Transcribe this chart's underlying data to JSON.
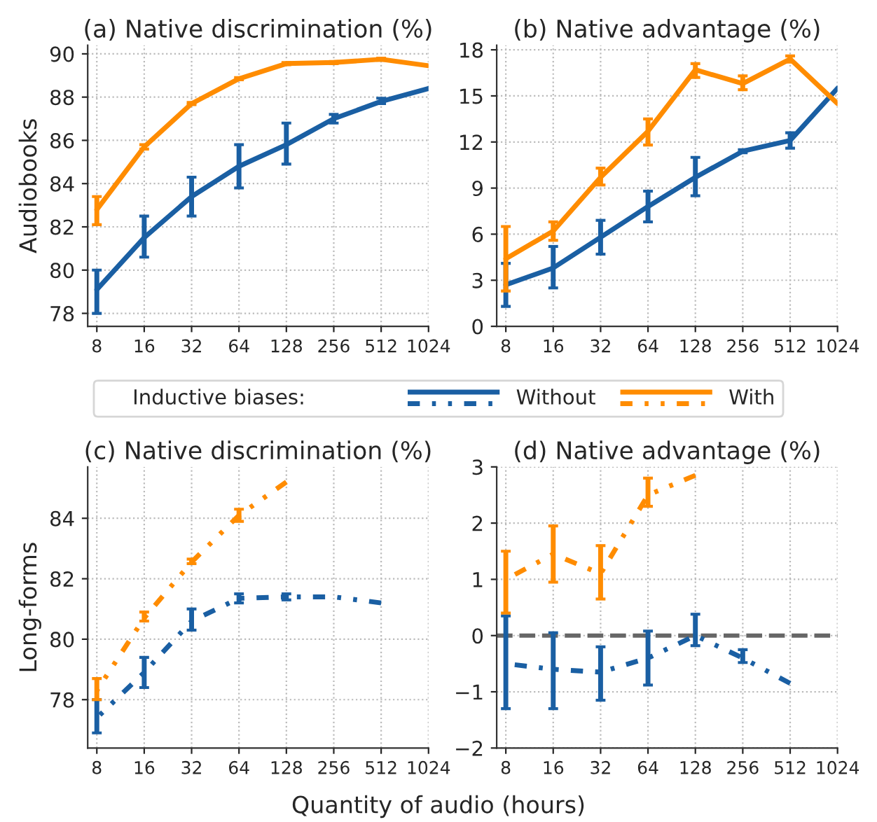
{
  "chart_data": [
    {
      "type": "line",
      "title": "(a) Native discrimination (%)",
      "ylabel": "Audiobooks",
      "x": [
        8,
        16,
        32,
        64,
        128,
        256,
        512,
        1024
      ],
      "log": "x",
      "xlim": [
        7,
        1024
      ],
      "xticks": [
        8,
        16,
        32,
        64,
        128,
        256,
        512,
        1024
      ],
      "ylim": [
        77.4,
        90.4
      ],
      "yticks": [
        78,
        80,
        82,
        84,
        86,
        88,
        90
      ],
      "grid": true,
      "line_style": "solid",
      "legend": "bottom",
      "legend_title": "Inductive biases:",
      "series": [
        {
          "name": "Without",
          "color": "#1a5fa3",
          "values": [
            79.1,
            81.5,
            83.4,
            84.8,
            85.8,
            87.0,
            87.8,
            88.4
          ],
          "errors": [
            [
              78.0,
              80.0
            ],
            [
              80.6,
              82.5
            ],
            [
              82.5,
              84.3
            ],
            [
              83.8,
              85.8
            ],
            [
              84.9,
              86.8
            ],
            [
              86.8,
              87.2
            ],
            [
              87.7,
              87.95
            ],
            null
          ]
        },
        {
          "name": "With",
          "color": "#ff8c00",
          "values": [
            82.8,
            85.7,
            87.7,
            88.85,
            89.55,
            89.6,
            89.75,
            89.45
          ],
          "errors": [
            [
              82.1,
              83.4
            ],
            [
              85.6,
              85.8
            ],
            [
              87.65,
              87.75
            ],
            [
              88.8,
              88.9
            ],
            [
              89.5,
              89.6
            ],
            [
              89.55,
              89.65
            ],
            [
              89.7,
              89.8
            ],
            null
          ]
        }
      ]
    },
    {
      "type": "line",
      "title": "(b) Native advantage (%)",
      "x": [
        8,
        16,
        32,
        64,
        128,
        256,
        512,
        1024
      ],
      "log": "x",
      "xlim": [
        7,
        1024
      ],
      "xticks": [
        8,
        16,
        32,
        64,
        128,
        256,
        512,
        1024
      ],
      "ylim": [
        0,
        18.3
      ],
      "yticks": [
        0,
        3,
        6,
        9,
        12,
        15,
        18
      ],
      "grid": true,
      "line_style": "solid",
      "series": [
        {
          "color": "#1a5fa3",
          "values": [
            2.7,
            3.8,
            5.8,
            7.8,
            9.7,
            11.4,
            12.1,
            15.5
          ],
          "errors": [
            [
              1.3,
              4.1
            ],
            [
              2.5,
              5.2
            ],
            [
              4.7,
              6.9
            ],
            [
              6.8,
              8.8
            ],
            [
              8.5,
              11.0
            ],
            [
              11.3,
              11.5
            ],
            [
              11.6,
              12.6
            ],
            null
          ]
        },
        {
          "color": "#ff8c00",
          "values": [
            4.4,
            6.2,
            9.7,
            12.7,
            16.7,
            15.8,
            17.4,
            14.5
          ],
          "errors": [
            [
              2.3,
              6.5
            ],
            [
              5.6,
              6.8
            ],
            [
              9.2,
              10.3
            ],
            [
              11.8,
              13.5
            ],
            [
              16.2,
              17.1
            ],
            [
              15.4,
              16.3
            ],
            [
              17.2,
              17.6
            ],
            null
          ]
        }
      ]
    },
    {
      "type": "line",
      "title": "(c) Native discrimination (%)",
      "ylabel": "Long-forms",
      "xlabel": "Quantity of audio (hours)",
      "log": "x",
      "xlim": [
        7,
        1024
      ],
      "xticks": [
        8,
        16,
        32,
        64,
        128,
        256,
        512,
        1024
      ],
      "ylim": [
        76.4,
        85.7
      ],
      "yticks": [
        78,
        80,
        82,
        84
      ],
      "grid": true,
      "line_style": "dashed",
      "series": [
        {
          "color": "#1a5fa3",
          "x": [
            8,
            16,
            32,
            64,
            128,
            256,
            512
          ],
          "values": [
            77.4,
            78.9,
            80.6,
            81.35,
            81.4,
            81.4,
            81.2
          ],
          "errors": [
            [
              76.9,
              78.0
            ],
            [
              78.4,
              79.4
            ],
            [
              80.3,
              81.0
            ],
            [
              81.2,
              81.5
            ],
            [
              81.3,
              81.5
            ],
            null,
            null
          ]
        },
        {
          "color": "#ff8c00",
          "x": [
            8,
            16,
            32,
            64,
            128
          ],
          "values": [
            78.3,
            80.7,
            82.55,
            84.1,
            85.2
          ],
          "errors": [
            [
              78.0,
              78.7
            ],
            [
              80.6,
              80.9
            ],
            [
              82.5,
              82.65
            ],
            [
              83.9,
              84.3
            ],
            null
          ]
        }
      ]
    },
    {
      "type": "line",
      "title": "(d) Native advantage (%)",
      "log": "x",
      "xlim": [
        7,
        1024
      ],
      "xticks": [
        8,
        16,
        32,
        64,
        128,
        256,
        512,
        1024
      ],
      "ylim": [
        -2,
        3
      ],
      "yticks": [
        -2,
        -1,
        0,
        1,
        2,
        3
      ],
      "grid": true,
      "line_style": "dashed",
      "ref_lines": [
        {
          "axis": "y",
          "value": 0,
          "color": "#666666",
          "line_style": "dashed"
        }
      ],
      "series": [
        {
          "color": "#1a5fa3",
          "x": [
            8,
            16,
            32,
            64,
            128,
            256,
            512
          ],
          "values": [
            -0.5,
            -0.6,
            -0.65,
            -0.4,
            0.0,
            -0.4,
            -0.85
          ],
          "errors": [
            [
              -1.3,
              0.35
            ],
            [
              -1.3,
              0.05
            ],
            [
              -1.15,
              -0.2
            ],
            [
              -0.88,
              0.08
            ],
            [
              -0.18,
              0.38
            ],
            [
              -0.48,
              -0.25
            ],
            null
          ]
        },
        {
          "color": "#ff8c00",
          "x": [
            8,
            16,
            32,
            64,
            128
          ],
          "values": [
            1.0,
            1.45,
            1.1,
            2.5,
            2.85
          ],
          "errors": [
            [
              0.4,
              1.5
            ],
            [
              0.95,
              1.95
            ],
            [
              0.65,
              1.6
            ],
            [
              2.3,
              2.8
            ],
            null
          ]
        }
      ]
    }
  ]
}
